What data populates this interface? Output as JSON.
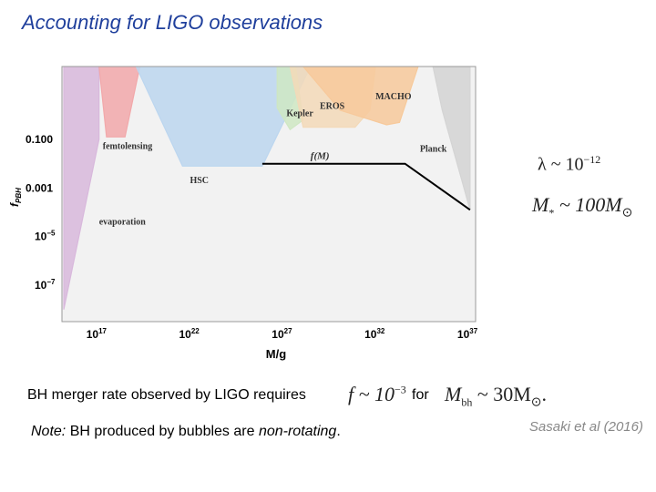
{
  "slide": {
    "title": "Accounting for LIGO observations",
    "merger_text": "BH merger rate observed by LIGO requires",
    "f_expr": "f ~ 10",
    "f_exp": "−3",
    "for_text": "for",
    "m_expr": "M",
    "m_sub": "bh",
    "m_value": " ~ 30M",
    "sun_symbol": "⊙",
    "period": ".",
    "note_label": "Note:",
    "note_text_1": " BH produced by bubbles are ",
    "note_text_italic": "non-rotating",
    "note_text_2": ".",
    "citation": "Sasaki et al (2016)",
    "lambda_expr": "λ ~ 10",
    "lambda_exp": "−12",
    "mstar_expr": "M",
    "mstar_sub": "*",
    "mstar_value": " ~ 100M"
  },
  "chart_data": {
    "type": "area",
    "xlabel": "M/g",
    "ylabel": "f_PBH",
    "x_scale": "log",
    "y_scale": "log",
    "xlim_log10": [
      15,
      37.3
    ],
    "ylim_log10": [
      -8.5,
      2
    ],
    "x_ticks": [
      {
        "exp": 17,
        "label": "10",
        "sup": "17"
      },
      {
        "exp": 22,
        "label": "10",
        "sup": "22"
      },
      {
        "exp": 27,
        "label": "10",
        "sup": "27"
      },
      {
        "exp": 32,
        "label": "10",
        "sup": "32"
      },
      {
        "exp": 37,
        "label": "10",
        "sup": "37"
      }
    ],
    "y_ticks": [
      {
        "exp": -1,
        "label": "0.100",
        "sup": ""
      },
      {
        "exp": -3,
        "label": "0.001",
        "sup": ""
      },
      {
        "exp": -5,
        "label": "10",
        "sup": "−5"
      },
      {
        "exp": -7,
        "label": "10",
        "sup": "−7"
      }
    ],
    "constraints": [
      {
        "name": "evaporation",
        "color": "#d8b8dc",
        "points": [
          [
            15.1,
            2
          ],
          [
            17.0,
            2
          ],
          [
            17.0,
            -1.0
          ],
          [
            15.1,
            -8.0
          ]
        ]
      },
      {
        "name": "femtolensing",
        "color": "#f2a8aa",
        "points": [
          [
            17.0,
            2
          ],
          [
            19.2,
            2
          ],
          [
            18.4,
            -0.9
          ],
          [
            17.4,
            -0.9
          ]
        ]
      },
      {
        "name": "HSC",
        "color": "#bcd6ef",
        "points": [
          [
            19.0,
            2
          ],
          [
            28.4,
            2
          ],
          [
            25.8,
            -2.1
          ],
          [
            22.0,
            -2.1
          ],
          [
            21.5,
            -2.1
          ]
        ]
      },
      {
        "name": "Kepler",
        "color": "#cfe7c3",
        "points": [
          [
            26.6,
            2
          ],
          [
            27.6,
            2
          ],
          [
            28.0,
            -0.2
          ],
          [
            27.3,
            -0.6
          ],
          [
            26.6,
            0.3
          ]
        ]
      },
      {
        "name": "EROS",
        "color": "#f3d9b8",
        "points": [
          [
            27.3,
            2
          ],
          [
            31.9,
            2
          ],
          [
            31.6,
            0.2
          ],
          [
            30.8,
            -0.5
          ],
          [
            29.4,
            -0.5
          ],
          [
            28.0,
            -0.5
          ]
        ]
      },
      {
        "name": "MACHO",
        "color": "#f7c99b",
        "points": [
          [
            28.0,
            2
          ],
          [
            34.2,
            2
          ],
          [
            33.2,
            -0.3
          ],
          [
            32.5,
            -0.4
          ],
          [
            30.0,
            0.2
          ]
        ]
      },
      {
        "name": "Planck",
        "color": "#d4d4d4",
        "points": [
          [
            35.0,
            2
          ],
          [
            37.0,
            2
          ],
          [
            37.0,
            -3.9
          ],
          [
            35.5,
            0.2
          ]
        ]
      }
    ],
    "f_of_M": {
      "name": "f(M)",
      "points": [
        [
          25.8,
          -2.0
        ],
        [
          33.5,
          -2.0
        ],
        [
          37.0,
          -3.9
        ]
      ]
    },
    "labels": [
      {
        "text": "femtolensing",
        "x": 17.2,
        "y": -1.4
      },
      {
        "text": "HSC",
        "x": 21.9,
        "y": -2.8
      },
      {
        "text": "Kepler",
        "x": 27.1,
        "y": -0.05
      },
      {
        "text": "EROS",
        "x": 28.9,
        "y": 0.25
      },
      {
        "text": "MACHO",
        "x": 31.9,
        "y": 0.65
      },
      {
        "text": "Planck",
        "x": 34.3,
        "y": -1.5
      },
      {
        "text": "f(M)",
        "x": 28.4,
        "y": -1.8
      },
      {
        "text": "evaporation",
        "x": 17.0,
        "y": -4.5
      }
    ]
  }
}
